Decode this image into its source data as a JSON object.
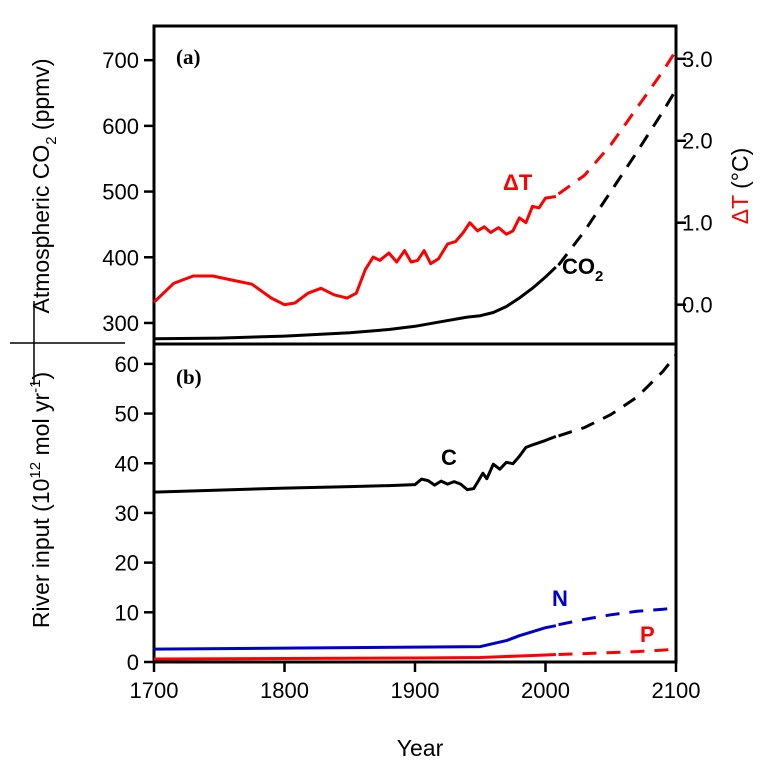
{
  "chart_data": [
    {
      "panel": "(a)",
      "type": "line",
      "x_range": [
        1700,
        2100
      ],
      "y_left": {
        "label_parts": [
          "Atmospheric CO",
          "2",
          " (ppmv)"
        ],
        "ticks": [
          300,
          400,
          500,
          600,
          700
        ],
        "tick_labels": [
          "300",
          "400",
          "500",
          "600",
          "700"
        ],
        "range": [
          268,
          752
        ]
      },
      "y_right": {
        "label": "ΔT (°C)",
        "label_parts": [
          "ΔT",
          " (°C)"
        ],
        "ticks": [
          0,
          1,
          2,
          3
        ],
        "tick_labels": [
          "0.0",
          "1.0",
          "2.0",
          "3.0"
        ],
        "range": [
          -0.48,
          3.4
        ]
      },
      "series": [
        {
          "name_parts": [
            "CO",
            "2"
          ],
          "axis": "left",
          "color": "#000000",
          "observed": [
            [
              1700,
              276
            ],
            [
              1750,
              277
            ],
            [
              1800,
              280
            ],
            [
              1850,
              285
            ],
            [
              1880,
              290
            ],
            [
              1900,
              295
            ],
            [
              1920,
              302
            ],
            [
              1940,
              309
            ],
            [
              1950,
              311
            ],
            [
              1960,
              316
            ],
            [
              1970,
              325
            ],
            [
              1980,
              338
            ],
            [
              1990,
              353
            ],
            [
              2000,
              370
            ],
            [
              2008,
              385
            ]
          ],
          "projected": [
            [
              2010,
              388
            ],
            [
              2030,
              440
            ],
            [
              2050,
              500
            ],
            [
              2070,
              560
            ],
            [
              2090,
              622
            ],
            [
              2100,
              655
            ]
          ]
        },
        {
          "name_parts": [
            "ΔT"
          ],
          "axis": "right",
          "color": "#ff0000",
          "observed": [
            [
              1700,
              0.03
            ],
            [
              1715,
              0.26
            ],
            [
              1730,
              0.35
            ],
            [
              1745,
              0.35
            ],
            [
              1760,
              0.3
            ],
            [
              1775,
              0.25
            ],
            [
              1790,
              0.08
            ],
            [
              1800,
              0.0
            ],
            [
              1808,
              0.02
            ],
            [
              1818,
              0.14
            ],
            [
              1828,
              0.2
            ],
            [
              1838,
              0.12
            ],
            [
              1848,
              0.08
            ],
            [
              1855,
              0.14
            ],
            [
              1862,
              0.43
            ],
            [
              1868,
              0.58
            ],
            [
              1873,
              0.54
            ],
            [
              1880,
              0.63
            ],
            [
              1886,
              0.52
            ],
            [
              1892,
              0.66
            ],
            [
              1897,
              0.52
            ],
            [
              1902,
              0.54
            ],
            [
              1907,
              0.66
            ],
            [
              1912,
              0.5
            ],
            [
              1918,
              0.56
            ],
            [
              1925,
              0.74
            ],
            [
              1931,
              0.77
            ],
            [
              1937,
              0.88
            ],
            [
              1942,
              1.0
            ],
            [
              1948,
              0.9
            ],
            [
              1953,
              0.95
            ],
            [
              1958,
              0.88
            ],
            [
              1964,
              0.94
            ],
            [
              1970,
              0.86
            ],
            [
              1975,
              0.9
            ],
            [
              1980,
              1.06
            ],
            [
              1985,
              1.0
            ],
            [
              1990,
              1.2
            ],
            [
              1995,
              1.18
            ],
            [
              2000,
              1.3
            ],
            [
              2008,
              1.32
            ]
          ],
          "projected": [
            [
              2010,
              1.35
            ],
            [
              2030,
              1.58
            ],
            [
              2050,
              1.95
            ],
            [
              2070,
              2.4
            ],
            [
              2090,
              2.85
            ],
            [
              2100,
              3.1
            ]
          ]
        }
      ]
    },
    {
      "panel": "(b)",
      "type": "line",
      "x_range": [
        1700,
        2100
      ],
      "xlabel": "Year",
      "x_ticks": [
        1700,
        1800,
        1900,
        2000,
        2100
      ],
      "x_tick_labels": [
        "1700",
        "1800",
        "1900",
        "2000",
        "2100"
      ],
      "y_left": {
        "label_parts": [
          "River input (10",
          "12",
          " mol yr",
          "-1",
          ")"
        ],
        "ticks": [
          0,
          10,
          20,
          30,
          40,
          50,
          60
        ],
        "tick_labels": [
          "0",
          "10",
          "20",
          "30",
          "40",
          "50",
          "60"
        ],
        "range": [
          0,
          64
        ]
      },
      "series": [
        {
          "name": "C",
          "color": "#000000",
          "observed": [
            [
              1700,
              34.2
            ],
            [
              1750,
              34.6
            ],
            [
              1800,
              35.0
            ],
            [
              1850,
              35.3
            ],
            [
              1880,
              35.5
            ],
            [
              1900,
              35.7
            ],
            [
              1905,
              36.8
            ],
            [
              1910,
              36.5
            ],
            [
              1915,
              35.6
            ],
            [
              1920,
              36.4
            ],
            [
              1925,
              35.8
            ],
            [
              1930,
              36.3
            ],
            [
              1935,
              35.8
            ],
            [
              1940,
              34.7
            ],
            [
              1945,
              34.9
            ],
            [
              1948,
              36.2
            ],
            [
              1952,
              38.0
            ],
            [
              1955,
              36.9
            ],
            [
              1960,
              39.8
            ],
            [
              1965,
              38.8
            ],
            [
              1970,
              40.2
            ],
            [
              1975,
              39.9
            ],
            [
              1980,
              41.4
            ],
            [
              1985,
              43.2
            ],
            [
              1990,
              43.7
            ],
            [
              2000,
              44.6
            ],
            [
              2008,
              45.4
            ]
          ],
          "projected": [
            [
              2010,
              45.5
            ],
            [
              2030,
              47.2
            ],
            [
              2050,
              49.8
            ],
            [
              2070,
              53.3
            ],
            [
              2090,
              58.5
            ],
            [
              2100,
              61.8
            ]
          ]
        },
        {
          "name": "N",
          "color": "#0000cc",
          "observed": [
            [
              1700,
              2.6
            ],
            [
              1800,
              2.8
            ],
            [
              1900,
              3.0
            ],
            [
              1950,
              3.1
            ],
            [
              1960,
              3.7
            ],
            [
              1970,
              4.3
            ],
            [
              1980,
              5.3
            ],
            [
              1990,
              6.1
            ],
            [
              2000,
              6.9
            ],
            [
              2008,
              7.3
            ]
          ],
          "projected": [
            [
              2010,
              7.5
            ],
            [
              2030,
              8.6
            ],
            [
              2050,
              9.5
            ],
            [
              2070,
              10.2
            ],
            [
              2090,
              10.6
            ],
            [
              2100,
              10.9
            ]
          ]
        },
        {
          "name": "P",
          "color": "#ff0000",
          "observed": [
            [
              1700,
              0.6
            ],
            [
              1800,
              0.7
            ],
            [
              1900,
              0.8
            ],
            [
              1950,
              0.9
            ],
            [
              1960,
              1.0
            ],
            [
              1980,
              1.2
            ],
            [
              2000,
              1.4
            ],
            [
              2008,
              1.5
            ]
          ],
          "projected": [
            [
              2010,
              1.5
            ],
            [
              2030,
              1.7
            ],
            [
              2050,
              1.9
            ],
            [
              2070,
              2.1
            ],
            [
              2090,
              2.4
            ],
            [
              2100,
              2.6
            ]
          ]
        }
      ]
    }
  ]
}
